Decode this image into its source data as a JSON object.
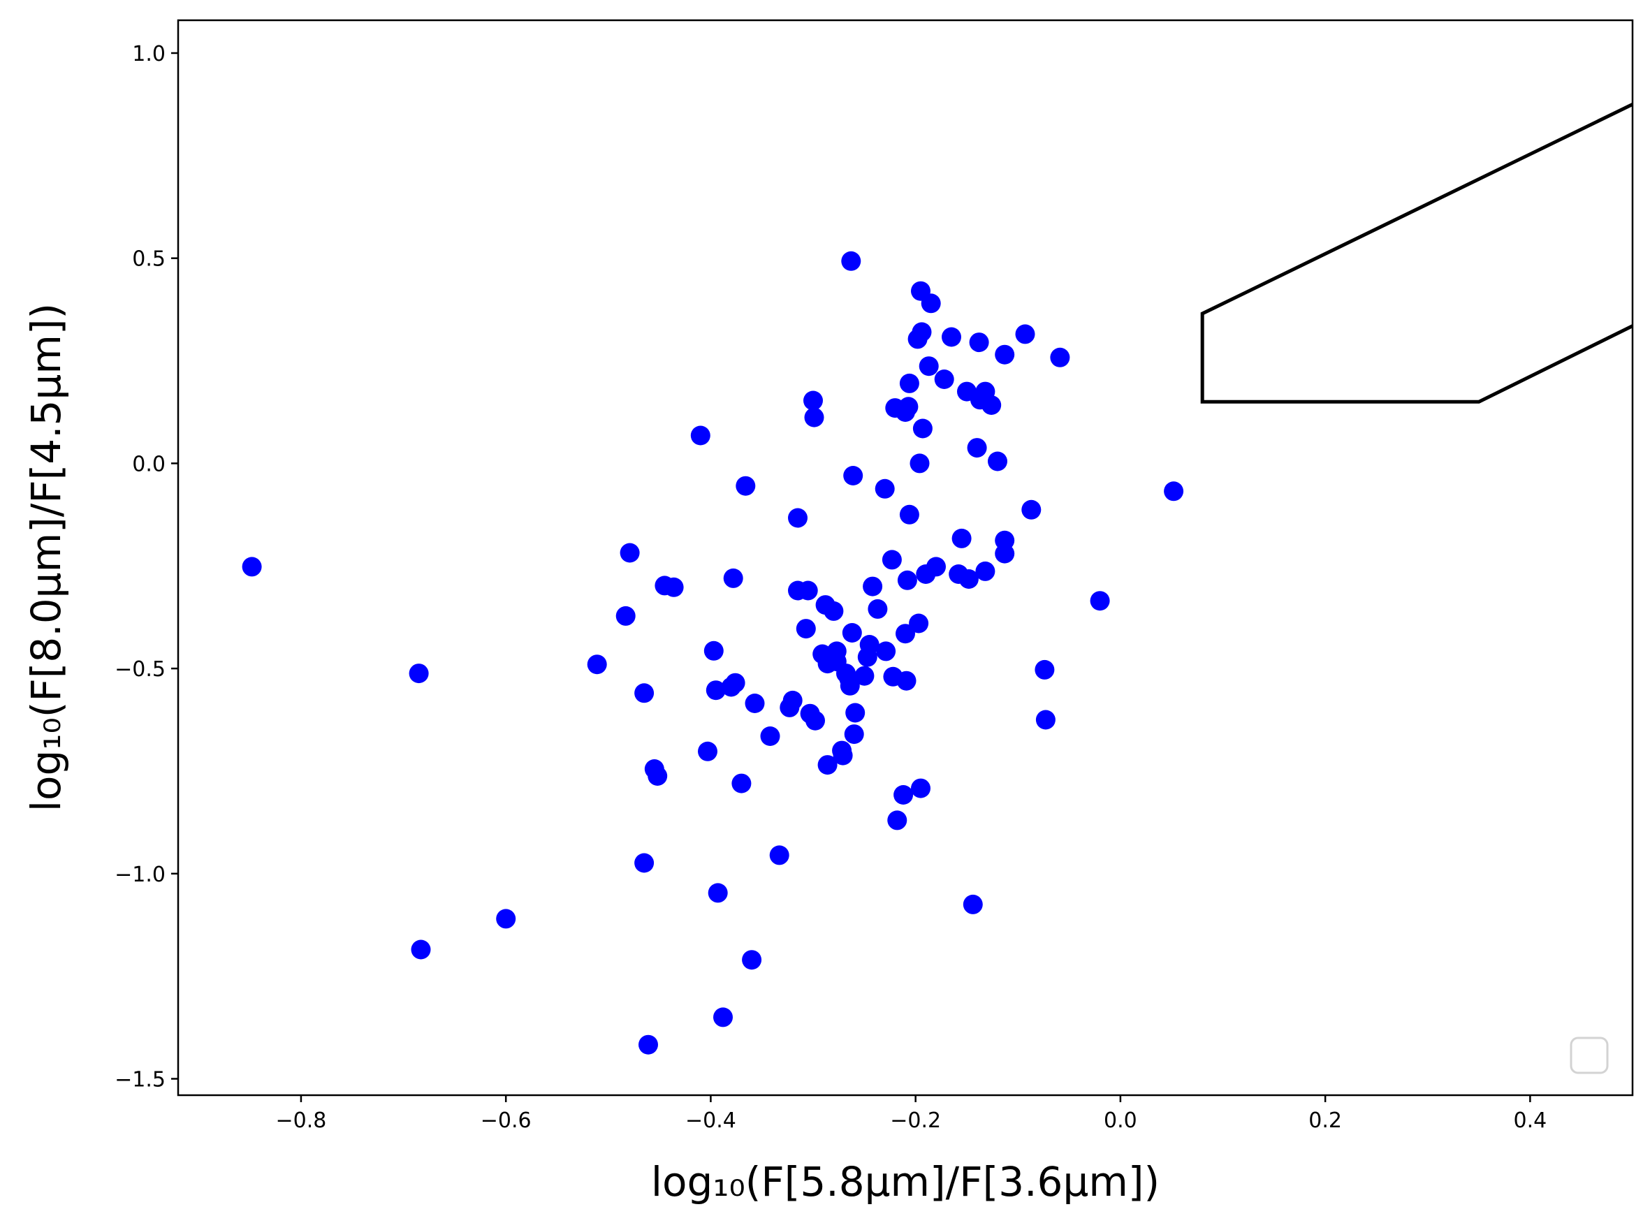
{
  "chart_data": {
    "type": "scatter",
    "title": "",
    "xlabel": "log₁₀(F[5.8μm]/F[3.6μm])",
    "ylabel": "log₁₀(F[8.0μm]/F[4.5μm])",
    "xlim": [
      -0.92,
      0.5
    ],
    "ylim": [
      -1.54,
      1.08
    ],
    "xticks": [
      -0.8,
      -0.6,
      -0.4,
      -0.2,
      0.0,
      0.2,
      0.4
    ],
    "xtick_labels": [
      "−0.8",
      "−0.6",
      "−0.4",
      "−0.2",
      "0.0",
      "0.2",
      "0.4"
    ],
    "yticks": [
      1.0,
      0.5,
      0.0,
      -0.5,
      -1.0,
      -1.5
    ],
    "ytick_labels": [
      "1.0",
      "0.5",
      "0.0",
      "−0.5",
      "−1.0",
      "−1.5"
    ],
    "grid": false,
    "legend": "lower-right (empty)",
    "marker_color": "#0000ff",
    "line_color": "#000000",
    "boundary_line": {
      "x": [
        0.5,
        0.08,
        0.08,
        0.35,
        0.5
      ],
      "y": [
        0.875,
        0.365,
        0.15,
        0.15,
        0.335
      ]
    },
    "series": [
      {
        "points": [
          [
            -0.848,
            -0.252
          ],
          [
            -0.685,
            -0.512
          ],
          [
            -0.683,
            -1.185
          ],
          [
            -0.6,
            -1.11
          ],
          [
            -0.511,
            -0.49
          ],
          [
            -0.483,
            -0.372
          ],
          [
            -0.479,
            -0.218
          ],
          [
            -0.465,
            -0.56
          ],
          [
            -0.465,
            -0.974
          ],
          [
            -0.461,
            -1.417
          ],
          [
            -0.455,
            -0.745
          ],
          [
            -0.452,
            -0.762
          ],
          [
            -0.445,
            -0.298
          ],
          [
            -0.436,
            -0.302
          ],
          [
            -0.41,
            0.068
          ],
          [
            -0.403,
            -0.702
          ],
          [
            -0.397,
            -0.457
          ],
          [
            -0.395,
            -0.553
          ],
          [
            -0.393,
            -1.047
          ],
          [
            -0.388,
            -1.35
          ],
          [
            -0.38,
            -0.545
          ],
          [
            -0.378,
            -0.28
          ],
          [
            -0.376,
            -0.535
          ],
          [
            -0.37,
            -0.78
          ],
          [
            -0.366,
            -0.055
          ],
          [
            -0.36,
            -1.21
          ],
          [
            -0.357,
            -0.585
          ],
          [
            -0.342,
            -0.665
          ],
          [
            -0.333,
            -0.955
          ],
          [
            -0.323,
            -0.595
          ],
          [
            -0.32,
            -0.578
          ],
          [
            -0.315,
            -0.133
          ],
          [
            -0.315,
            -0.31
          ],
          [
            -0.307,
            -0.403
          ],
          [
            -0.305,
            -0.31
          ],
          [
            -0.303,
            -0.61
          ],
          [
            -0.3,
            0.153
          ],
          [
            -0.299,
            0.112
          ],
          [
            -0.298,
            -0.627
          ],
          [
            -0.291,
            -0.465
          ],
          [
            -0.288,
            -0.345
          ],
          [
            -0.286,
            -0.488
          ],
          [
            -0.286,
            -0.735
          ],
          [
            -0.28,
            -0.36
          ],
          [
            -0.277,
            -0.458
          ],
          [
            -0.277,
            -0.483
          ],
          [
            -0.272,
            -0.7
          ],
          [
            -0.271,
            -0.712
          ],
          [
            -0.268,
            -0.512
          ],
          [
            -0.265,
            -0.525
          ],
          [
            -0.264,
            -0.542
          ],
          [
            -0.263,
            0.493
          ],
          [
            -0.262,
            -0.413
          ],
          [
            -0.261,
            -0.03
          ],
          [
            -0.26,
            -0.66
          ],
          [
            -0.259,
            -0.608
          ],
          [
            -0.25,
            -0.518
          ],
          [
            -0.247,
            -0.472
          ],
          [
            -0.245,
            -0.442
          ],
          [
            -0.242,
            -0.3
          ],
          [
            -0.237,
            -0.355
          ],
          [
            -0.23,
            -0.062
          ],
          [
            -0.229,
            -0.458
          ],
          [
            -0.223,
            -0.235
          ],
          [
            -0.222,
            -0.52
          ],
          [
            -0.22,
            0.135
          ],
          [
            -0.218,
            -0.87
          ],
          [
            -0.212,
            -0.808
          ],
          [
            -0.21,
            -0.415
          ],
          [
            -0.21,
            0.125
          ],
          [
            -0.209,
            -0.53
          ],
          [
            -0.208,
            -0.285
          ],
          [
            -0.207,
            0.138
          ],
          [
            -0.206,
            0.195
          ],
          [
            -0.206,
            -0.125
          ],
          [
            -0.198,
            0.303
          ],
          [
            -0.197,
            -0.39
          ],
          [
            -0.196,
            0.0
          ],
          [
            -0.195,
            0.42
          ],
          [
            -0.195,
            -0.792
          ],
          [
            -0.194,
            0.32
          ],
          [
            -0.193,
            0.085
          ],
          [
            -0.19,
            -0.27
          ],
          [
            -0.187,
            0.237
          ],
          [
            -0.185,
            0.39
          ],
          [
            -0.18,
            -0.252
          ],
          [
            -0.172,
            0.205
          ],
          [
            -0.165,
            0.308
          ],
          [
            -0.158,
            -0.27
          ],
          [
            -0.155,
            -0.183
          ],
          [
            -0.15,
            0.175
          ],
          [
            -0.148,
            -0.282
          ],
          [
            -0.144,
            -1.075
          ],
          [
            -0.14,
            0.038
          ],
          [
            -0.138,
            0.295
          ],
          [
            -0.137,
            0.155
          ],
          [
            -0.132,
            0.175
          ],
          [
            -0.132,
            -0.263
          ],
          [
            -0.126,
            0.142
          ],
          [
            -0.12,
            0.005
          ],
          [
            -0.113,
            0.265
          ],
          [
            -0.113,
            -0.188
          ],
          [
            -0.113,
            -0.22
          ],
          [
            -0.093,
            0.315
          ],
          [
            -0.087,
            -0.113
          ],
          [
            -0.074,
            -0.503
          ],
          [
            -0.073,
            -0.625
          ],
          [
            -0.059,
            0.258
          ],
          [
            -0.02,
            -0.335
          ],
          [
            0.052,
            -0.068
          ]
        ]
      }
    ]
  }
}
